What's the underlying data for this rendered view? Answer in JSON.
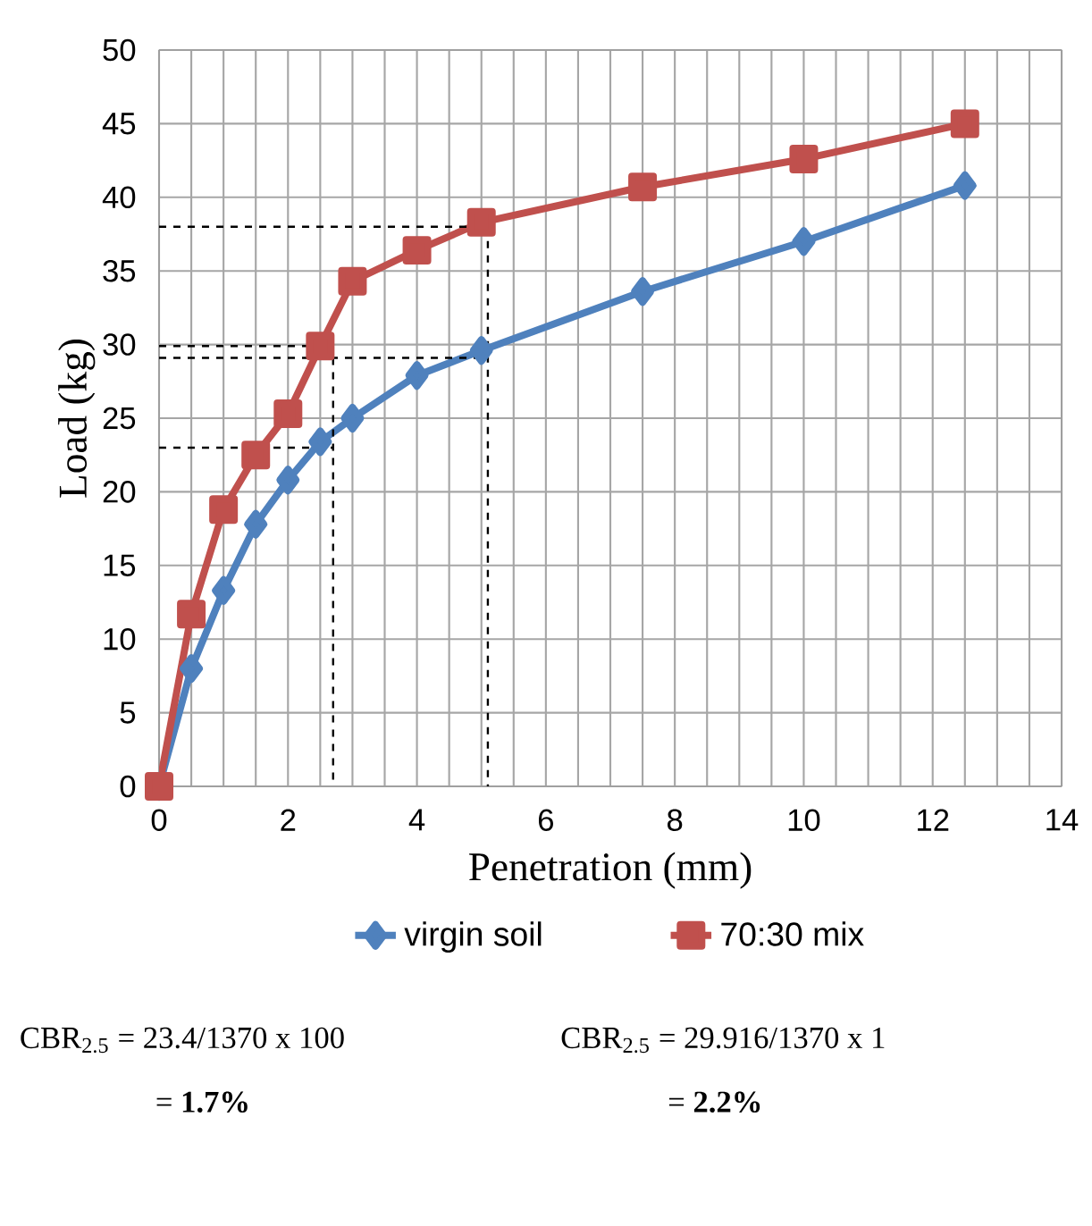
{
  "chart_data": {
    "type": "line",
    "xlabel": "Penetration (mm)",
    "ylabel": "Load (kg)",
    "xlim": [
      0,
      14
    ],
    "xticks": [
      0,
      2,
      4,
      6,
      8,
      10,
      12,
      14
    ],
    "ylim": [
      0,
      50
    ],
    "yticks": [
      0,
      5,
      10,
      15,
      20,
      25,
      30,
      35,
      40,
      45,
      50
    ],
    "grid": true,
    "legend": "bottom",
    "series": [
      {
        "name": "virgin soil",
        "color": "#4f81bd",
        "marker": "diamond",
        "x": [
          0,
          0.5,
          1,
          1.5,
          2,
          2.5,
          3,
          4,
          5,
          7.5,
          10,
          12.5
        ],
        "values": [
          0,
          8,
          13.3,
          17.8,
          20.8,
          23.4,
          25,
          27.9,
          29.6,
          33.6,
          37,
          40.8
        ]
      },
      {
        "name": "70:30 mix",
        "color": "#c0504d",
        "marker": "square",
        "x": [
          0,
          0.5,
          1,
          1.5,
          2,
          2.5,
          3,
          4,
          5,
          7.5,
          10,
          12.5
        ],
        "values": [
          0,
          11.7,
          18.8,
          22.5,
          25.3,
          29.9,
          34.3,
          36.4,
          38.3,
          40.7,
          42.6,
          45
        ]
      },
      {
        "color": "#000000",
        "marker": "none",
        "line_style": "dashed",
        "x": [
          0,
          2.7,
          2.7
        ],
        "values": [
          29.9,
          29.9,
          0
        ]
      },
      {
        "color": "#000000",
        "marker": "none",
        "line_style": "dashed",
        "x": [
          0,
          2.7
        ],
        "values": [
          23,
          23
        ]
      },
      {
        "color": "#000000",
        "marker": "none",
        "line_style": "dashed",
        "x": [
          0,
          5.1,
          5.1
        ],
        "values": [
          38,
          38,
          0
        ]
      },
      {
        "color": "#000000",
        "marker": "none",
        "line_style": "dashed",
        "x": [
          0,
          5.1
        ],
        "values": [
          29.1,
          29.1
        ]
      }
    ],
    "annotations": [
      "CBR$_{2.5}$ = 23.4/1370 x 100",
      "= **1.7%**",
      "CBR$_{2.5}$ = 29.916/1370 x 1",
      "= **2.2%**"
    ]
  }
}
